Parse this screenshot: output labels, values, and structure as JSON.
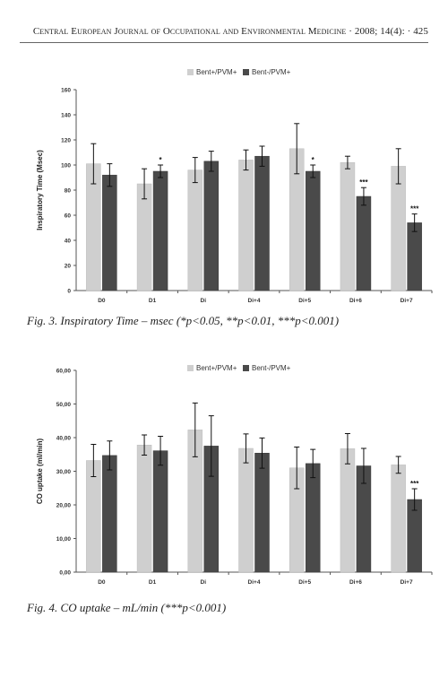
{
  "page": {
    "header": "Central European Journal of Occupational and Environmental Medicine · 2008; 14(4): · 425"
  },
  "figures": [
    {
      "caption": "Fig. 3. Inspiratory Time – msec (*p<0.05, **p<0.01, ***p<0.001)"
    },
    {
      "caption": "Fig. 4. CO uptake – mL/min (***p<0.001)"
    }
  ],
  "colors": {
    "series_light": "#cfcfcf",
    "series_dark": "#4a4a4a"
  },
  "chart_data": [
    {
      "type": "bar",
      "title": "",
      "xlabel": "",
      "ylabel": "Inspiratory Time (Msec)",
      "ylim": [
        0,
        160
      ],
      "yticks": [
        "0",
        "20",
        "40",
        "60",
        "80",
        "100",
        "120",
        "140",
        "160"
      ],
      "y_tick_values": [
        0,
        20,
        40,
        60,
        80,
        100,
        120,
        140,
        160
      ],
      "grid": false,
      "legend_placement": "top-center",
      "categories": [
        "D0",
        "D1",
        "Di",
        "Di+4",
        "Di+5",
        "Di+6",
        "Di+7"
      ],
      "series": [
        {
          "name": "Bent+/PVM+",
          "values": [
            101,
            85,
            96,
            104,
            113,
            102,
            99
          ],
          "errors": [
            16,
            12,
            10,
            8,
            20,
            5,
            14
          ],
          "annotations": [
            "",
            "",
            "",
            "",
            "",
            "",
            ""
          ]
        },
        {
          "name": "Bent-/PVM+",
          "values": [
            92,
            95,
            103,
            107,
            95,
            75,
            54
          ],
          "errors": [
            9,
            5,
            8,
            8,
            5,
            7,
            7
          ],
          "annotations": [
            "",
            "*",
            "",
            "",
            "*",
            "***",
            "***"
          ]
        }
      ]
    },
    {
      "type": "bar",
      "title": "",
      "xlabel": "",
      "ylabel": "CO uptake (ml/min)",
      "ylim": [
        0,
        60
      ],
      "yticks": [
        "0,00",
        "10,00",
        "20,00",
        "30,00",
        "40,00",
        "50,00",
        "60,00"
      ],
      "y_tick_values": [
        0,
        10,
        20,
        30,
        40,
        50,
        60
      ],
      "grid": false,
      "legend_placement": "top-center",
      "categories": [
        "D0",
        "D1",
        "Di",
        "Di+4",
        "Di+5",
        "Di+6",
        "Di+7"
      ],
      "series": [
        {
          "name": "Bent+/PVM+",
          "values": [
            33.2,
            37.8,
            42.3,
            36.8,
            31.0,
            36.7,
            31.9
          ],
          "errors": [
            4.8,
            3.0,
            8.0,
            4.3,
            6.2,
            4.5,
            2.5
          ],
          "annotations": [
            "",
            "",
            "",
            "",
            "",
            "",
            ""
          ]
        },
        {
          "name": "Bent-/PVM+",
          "values": [
            34.7,
            36.1,
            37.5,
            35.4,
            32.3,
            31.6,
            21.6
          ],
          "errors": [
            4.3,
            4.3,
            9.0,
            4.5,
            4.2,
            5.2,
            3.2
          ],
          "annotations": [
            "",
            "",
            "",
            "",
            "",
            "",
            "***"
          ]
        }
      ]
    }
  ]
}
